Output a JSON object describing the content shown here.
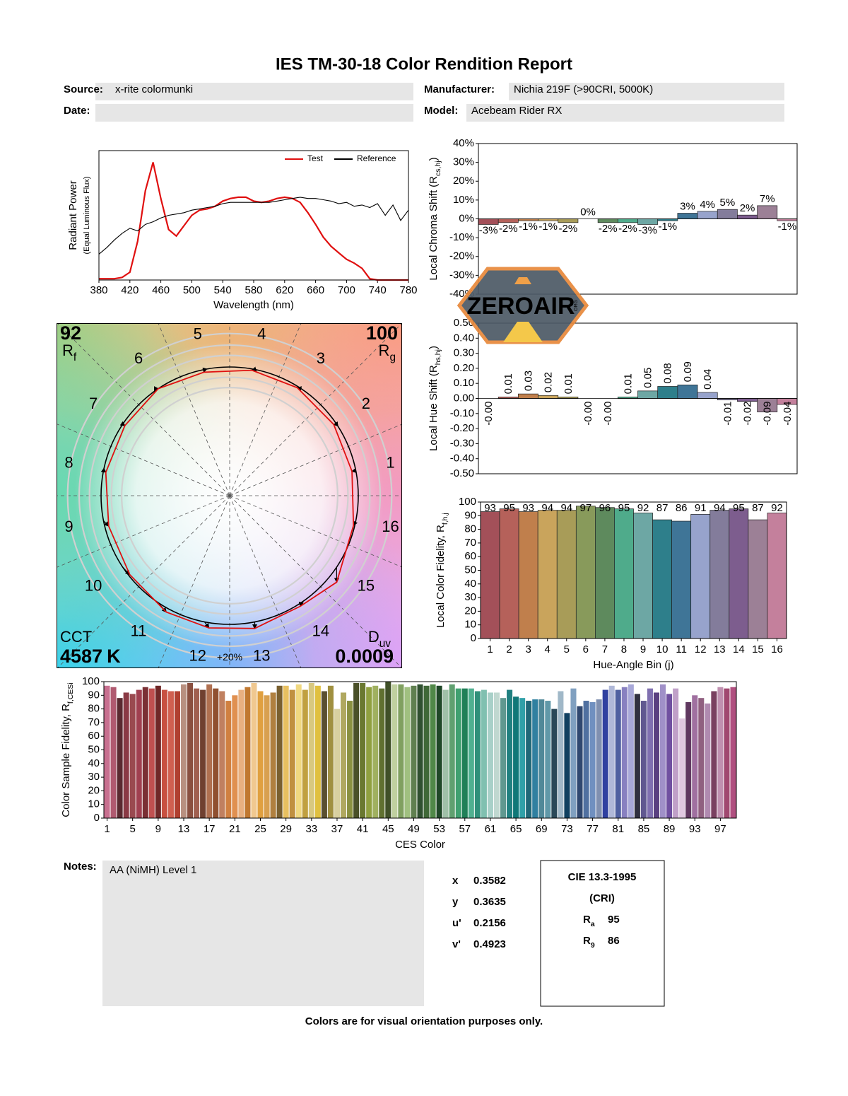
{
  "header": {
    "title": "IES TM-30-18 Color Rendition Report",
    "source_label": "Source:",
    "source": "x-rite colormunki",
    "date_label": "Date:",
    "manufacturer_label": "Manufacturer:",
    "manufacturer": "Nichia 219F (>90CRI, 5000K)",
    "model_label": "Model:",
    "model": "Acebeam Rider RX"
  },
  "chart_data": [
    {
      "type": "line",
      "ylabel": "Radiant Power",
      "ylabel2": "(Equal Luminous Flux)",
      "xlabel": "Wavelength (nm)",
      "x": [
        380,
        390,
        400,
        410,
        420,
        430,
        440,
        450,
        460,
        470,
        480,
        490,
        500,
        510,
        520,
        530,
        540,
        550,
        560,
        570,
        580,
        590,
        600,
        610,
        620,
        630,
        640,
        650,
        660,
        670,
        680,
        690,
        700,
        710,
        720,
        730,
        740,
        750,
        760,
        770,
        780
      ],
      "xlim": [
        380,
        780
      ],
      "ylim": [
        0,
        1
      ],
      "xticks": [
        380,
        420,
        460,
        500,
        540,
        580,
        620,
        660,
        700,
        740,
        780
      ],
      "legend": "upper right",
      "series": [
        {
          "name": "Test",
          "color": "#e01010",
          "values": [
            0.01,
            0.01,
            0.01,
            0.02,
            0.06,
            0.3,
            0.69,
            0.91,
            0.63,
            0.39,
            0.34,
            0.42,
            0.5,
            0.54,
            0.55,
            0.57,
            0.61,
            0.63,
            0.64,
            0.64,
            0.61,
            0.6,
            0.61,
            0.63,
            0.64,
            0.63,
            0.6,
            0.52,
            0.43,
            0.33,
            0.26,
            0.21,
            0.16,
            0.13,
            0.09,
            0.01,
            0,
            0,
            0,
            0,
            0
          ]
        },
        {
          "name": "Reference",
          "color": "#000000",
          "values": [
            0.2,
            0.25,
            0.31,
            0.36,
            0.4,
            0.38,
            0.43,
            0.45,
            0.48,
            0.5,
            0.51,
            0.52,
            0.54,
            0.55,
            0.56,
            0.57,
            0.59,
            0.6,
            0.6,
            0.6,
            0.6,
            0.6,
            0.6,
            0.61,
            0.62,
            0.63,
            0.64,
            0.63,
            0.63,
            0.62,
            0.61,
            0.59,
            0.6,
            0.57,
            0.58,
            0.56,
            0.59,
            0.5,
            0.58,
            0.46,
            0.54
          ]
        }
      ]
    },
    {
      "type": "bar",
      "ylabel": {
        "main": "Local Chroma Shift (R",
        "sub": "cs,hj",
        "end": ")"
      },
      "values": [
        -3,
        -2,
        -1,
        -1,
        -2,
        0,
        -2,
        -2,
        -3,
        -1,
        3,
        4,
        5,
        2,
        7,
        -1
      ],
      "value_labels": [
        "-3%",
        "-2%",
        "-1%",
        "-1%",
        "-2%",
        "0%",
        "-2%",
        "-2%",
        "-3%",
        "-1%",
        "3%",
        "4%",
        "5%",
        "2%",
        "7%",
        "-1%"
      ],
      "ylim": [
        -40,
        40
      ],
      "yticks": [
        {
          "value": 40,
          "label": "40%"
        },
        {
          "value": 30,
          "label": "30%"
        },
        {
          "value": 20,
          "label": "20%"
        },
        {
          "value": 10,
          "label": "10%"
        },
        {
          "value": 0,
          "label": "0%"
        },
        {
          "value": -10,
          "label": "-10%"
        },
        {
          "value": -20,
          "label": "-20%"
        },
        {
          "value": -30,
          "label": "-30%"
        },
        {
          "value": -40,
          "label": "-40%"
        }
      ],
      "colors": [
        "#a35059",
        "#b5615a",
        "#c07f4c",
        "#c9a45c",
        "#a89c58",
        "#889a5b",
        "#5e8a5d",
        "#4fab8b",
        "#6da7a4",
        "#2e7f8b",
        "#3f7597",
        "#97a3cc",
        "#837c9b",
        "#7d5d8e",
        "#9c8096",
        "#c4809c"
      ]
    },
    {
      "type": "bar",
      "ylabel": {
        "main": "Local Hue Shift (R",
        "sub": "hs,hj",
        "end": ")"
      },
      "values": [
        0,
        0.01,
        0.03,
        0.02,
        0.01,
        0,
        0,
        0.01,
        0.05,
        0.08,
        0.09,
        0.04,
        -0.01,
        -0.02,
        -0.09,
        -0.04
      ],
      "value_labels": [
        "-0.00",
        "0.01",
        "0.03",
        "0.02",
        "0.01",
        "-0.00",
        "-0.00",
        "0.01",
        "0.05",
        "0.08",
        "0.09",
        "0.04",
        "-0.01",
        "-0.02",
        "-0.09",
        "-0.04"
      ],
      "ylim": [
        -0.5,
        0.5
      ],
      "yticks": [
        {
          "value": 0.5,
          "label": "0.50"
        },
        {
          "value": 0.4,
          "label": "0.40"
        },
        {
          "value": 0.3,
          "label": "0.30"
        },
        {
          "value": 0.2,
          "label": "0.20"
        },
        {
          "value": 0.1,
          "label": "0.10"
        },
        {
          "value": 0,
          "label": "0.00"
        },
        {
          "value": -0.1,
          "label": "-0.10"
        },
        {
          "value": -0.2,
          "label": "-0.20"
        },
        {
          "value": -0.3,
          "label": "-0.30"
        },
        {
          "value": -0.4,
          "label": "-0.40"
        },
        {
          "value": -0.5,
          "label": "-0.50"
        }
      ],
      "colors": [
        "#a35059",
        "#b5615a",
        "#c07f4c",
        "#c9a45c",
        "#a89c58",
        "#889a5b",
        "#5e8a5d",
        "#4fab8b",
        "#6da7a4",
        "#2e7f8b",
        "#3f7597",
        "#97a3cc",
        "#837c9b",
        "#7d5d8e",
        "#9c8096",
        "#c4809c"
      ]
    },
    {
      "type": "bar",
      "ylabel": {
        "main": "Local Color Fidelity, R",
        "sub": "f,h,j"
      },
      "xlabel": "Hue-Angle Bin (j)",
      "data_labels": true,
      "categories": [
        "1",
        "2",
        "3",
        "4",
        "5",
        "6",
        "7",
        "8",
        "9",
        "10",
        "11",
        "12",
        "13",
        "14",
        "15",
        "16"
      ],
      "values": [
        93,
        95,
        93,
        94,
        94,
        97,
        96,
        95,
        92,
        87,
        86,
        91,
        94,
        95,
        87,
        92
      ],
      "ylim": [
        0,
        100
      ],
      "yticks": [
        0,
        10,
        20,
        30,
        40,
        50,
        60,
        70,
        80,
        90,
        100
      ],
      "colors": [
        "#a35059",
        "#b5615a",
        "#c07f4c",
        "#c9a45c",
        "#a89c58",
        "#889a5b",
        "#5e8a5d",
        "#4fab8b",
        "#6da7a4",
        "#2e7f8b",
        "#3f7597",
        "#97a3cc",
        "#837c9b",
        "#7d5d8e",
        "#9c8096",
        "#c4809c"
      ]
    },
    {
      "type": "vector",
      "rf": 92,
      "rf_label": "R",
      "rf_sub": "f",
      "rg": 100,
      "rg_label": "R",
      "rg_sub": "g",
      "cct_label": "CCT",
      "cct": 4587,
      "cct_unit": "K",
      "duv_label": "D",
      "duv_sub": "uv",
      "duv": 0.0009,
      "ring_label": "+20%",
      "reference_color": "#000000",
      "test_color": "#e01010"
    },
    {
      "type": "bar",
      "ylabel": {
        "main": "Color Sample Fidelity, R",
        "sub": "f,CESi"
      },
      "xlabel": "CES Color",
      "categories": [
        "1",
        null,
        null,
        null,
        "5",
        null,
        null,
        null,
        "9",
        null,
        null,
        null,
        "13",
        null,
        null,
        null,
        "17",
        null,
        null,
        null,
        "21",
        null,
        null,
        null,
        "25",
        null,
        null,
        null,
        "29",
        null,
        null,
        null,
        "33",
        null,
        null,
        null,
        "37",
        null,
        null,
        null,
        "41",
        null,
        null,
        null,
        "45",
        null,
        null,
        null,
        "49",
        null,
        null,
        null,
        "53",
        null,
        null,
        null,
        "57",
        null,
        null,
        null,
        "61",
        null,
        null,
        null,
        "65",
        null,
        null,
        null,
        "69",
        null,
        null,
        null,
        "73",
        null,
        null,
        null,
        "77",
        null,
        null,
        null,
        "81",
        null,
        null,
        null,
        "85",
        null,
        null,
        null,
        "89",
        null,
        null,
        null,
        "93",
        null,
        null,
        null,
        "97",
        null,
        null
      ],
      "values": [
        97,
        96,
        88,
        92,
        91,
        94,
        96,
        95,
        97,
        94,
        93,
        93,
        98,
        99,
        95,
        94,
        98,
        95,
        93,
        86,
        90,
        94,
        96,
        99,
        93,
        90,
        92,
        97,
        97,
        94,
        98,
        94,
        99,
        97,
        93,
        97,
        80,
        92,
        86,
        99,
        99,
        96,
        97,
        95,
        100,
        98,
        98,
        96,
        97,
        98,
        97,
        98,
        97,
        94,
        98,
        95,
        95,
        95,
        93,
        94,
        92,
        92,
        88,
        94,
        89,
        88,
        86,
        87,
        87,
        86,
        80,
        93,
        77,
        95,
        82,
        86,
        85,
        87,
        94,
        97,
        94,
        96,
        98,
        91,
        86,
        95,
        92,
        98,
        91,
        95,
        73,
        85,
        90,
        88,
        84,
        93,
        96,
        95,
        96
      ],
      "ylim": [
        0,
        100
      ],
      "yticks": [
        0,
        10,
        20,
        30,
        40,
        50,
        60,
        70,
        80,
        90,
        100
      ],
      "colors": [
        "#c87090",
        "#b05a70",
        "#5a2a30",
        "#8a3a45",
        "#9a4a50",
        "#a04050",
        "#7a3035",
        "#c05050",
        "#702828",
        "#c85040",
        "#d06050",
        "#b04030",
        "#b89080",
        "#8a5040",
        "#a06050",
        "#704030",
        "#b07050",
        "#905030",
        "#c08060",
        "#d08040",
        "#e09050",
        "#e8b080",
        "#c07830",
        "#f0c890",
        "#e0a040",
        "#d8a050",
        "#b08040",
        "#7a6030",
        "#e8c060",
        "#c09040",
        "#f0d880",
        "#c0a040",
        "#d8c880",
        "#e0c040",
        "#5a5030",
        "#a09040",
        "#d8d0a0",
        "#b0a860",
        "#8a9040",
        "#4a5028",
        "#6a7830",
        "#90a040",
        "#a0b060",
        "#607030",
        "#405028",
        "#c0d0a0",
        "#80a060",
        "#a0c080",
        "#608050",
        "#305030",
        "#406838",
        "#508848",
        "#204828",
        "#a0c0a8",
        "#60a070",
        "#40a070",
        "#208058",
        "#50b090",
        "#30907a",
        "#80c0b0",
        "#a8d0c8",
        "#c0d8d0",
        "#609890",
        "#208080",
        "#107878",
        "#30a0a8",
        "#206878",
        "#3080a0",
        "#508898",
        "#6098a8",
        "#2a4858",
        "#a0b8c8",
        "#104060",
        "#80a0c0",
        "#304870",
        "#5070a0",
        "#7090c0",
        "#8090b0",
        "#3040a0",
        "#b0b8d8",
        "#5060a0",
        "#8880c0",
        "#a8a8d8",
        "#303040",
        "#605890",
        "#8070b0",
        "#5a4080",
        "#a090c8",
        "#7050a0",
        "#c0a0c8",
        "#e0c8e0",
        "#603860",
        "#a070a0",
        "#906080",
        "#b08ab0",
        "#7a4060",
        "#c090b0",
        "#a04870",
        "#b05080"
      ]
    }
  ],
  "notes": {
    "label": "Notes:",
    "text": "AA (NiMH) Level 1"
  },
  "chromaticity": [
    {
      "label": "x",
      "value": 0.3582
    },
    {
      "label": "y",
      "value": 0.3635
    },
    {
      "label": "u'",
      "value": 0.2156
    },
    {
      "label": "v'",
      "value": 0.4923
    }
  ],
  "cie": {
    "title": "CIE 13.3-1995",
    "subtitle": "(CRI)",
    "rows": [
      {
        "symbol": "R",
        "sub": "a",
        "value": 95
      },
      {
        "symbol": "R",
        "sub": "9",
        "value": 86
      }
    ]
  },
  "watermark": {
    "text": "ZEROAIR",
    "sub": "ORG"
  },
  "footer": "Colors are for visual orientation purposes only."
}
